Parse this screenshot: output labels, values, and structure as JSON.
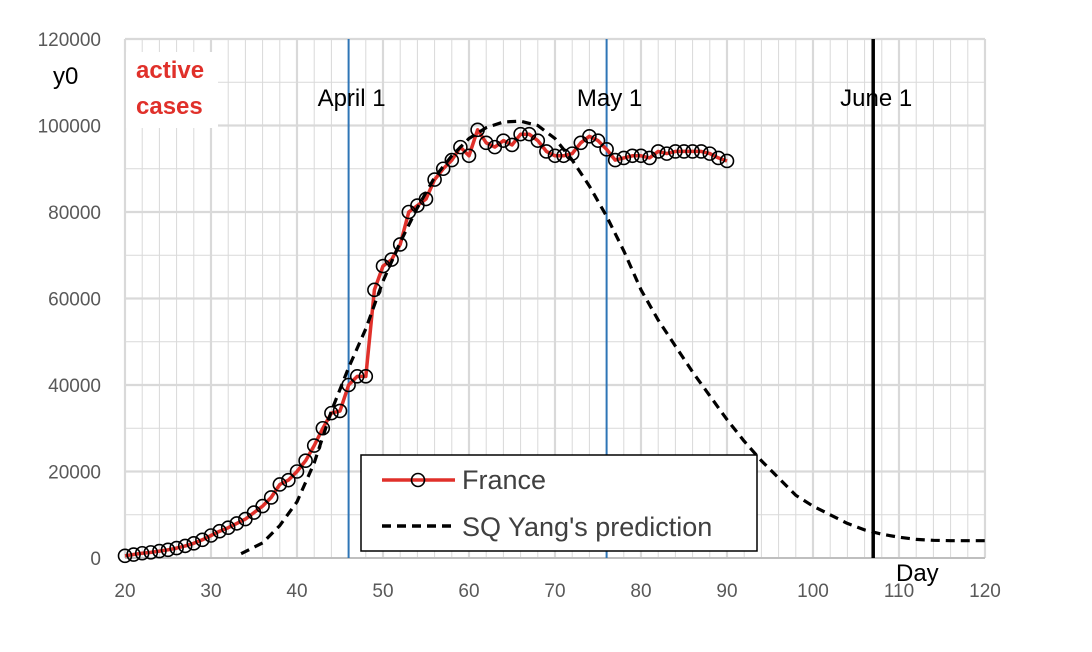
{
  "chart_data": {
    "type": "line",
    "title": "",
    "xlabel": "Day",
    "ylabel": "y0",
    "corner_label": [
      "active",
      "cases"
    ],
    "xlim": [
      20,
      120
    ],
    "ylim": [
      0,
      120000
    ],
    "x_ticks": [
      20,
      30,
      40,
      50,
      60,
      70,
      80,
      90,
      100,
      110,
      120
    ],
    "y_ticks": [
      0,
      20000,
      40000,
      60000,
      80000,
      100000,
      120000
    ],
    "grid": true,
    "legend_position": "bottom-center",
    "colors": {
      "france": "#e0302a",
      "prediction": "#000000",
      "month_line": "#2e75b6",
      "grid": "#d9d9d9",
      "red_label": "#e0302a"
    },
    "vlines": [
      {
        "x": 46,
        "label": "April 1",
        "color": "#2e75b6"
      },
      {
        "x": 76,
        "label": "May 1",
        "color": "#2e75b6"
      },
      {
        "x": 107,
        "label": "June 1",
        "color": "#000000"
      }
    ],
    "series": [
      {
        "name": "France",
        "style": "solid-line-circle-markers",
        "x": [
          20,
          21,
          22,
          23,
          24,
          25,
          26,
          27,
          28,
          29,
          30,
          31,
          32,
          33,
          34,
          35,
          36,
          37,
          38,
          39,
          40,
          41,
          42,
          43,
          44,
          45,
          46,
          47,
          48,
          49,
          50,
          51,
          52,
          53,
          54,
          55,
          56,
          57,
          58,
          59,
          60,
          61,
          62,
          63,
          64,
          65,
          66,
          67,
          68,
          69,
          70,
          71,
          72,
          73,
          74,
          75,
          76,
          77,
          78,
          79,
          80,
          81,
          82,
          83,
          84,
          85,
          86,
          87,
          88,
          89,
          90
        ],
        "y": [
          500,
          800,
          1100,
          1300,
          1600,
          1900,
          2300,
          2800,
          3400,
          4200,
          5200,
          6200,
          7000,
          8000,
          9000,
          10500,
          12000,
          14000,
          17000,
          18000,
          20000,
          22500,
          26000,
          30000,
          33500,
          34000,
          40000,
          42000,
          42000,
          62000,
          67500,
          69000,
          72500,
          80000,
          81500,
          83000,
          87500,
          90000,
          92000,
          95000,
          93000,
          99000,
          96000,
          95000,
          96500,
          95500,
          98000,
          98000,
          96500,
          94000,
          93000,
          93000,
          93500,
          96000,
          97500,
          96500,
          94500,
          92000,
          92500,
          93000,
          93000,
          92500,
          94000,
          93500,
          94000,
          94000,
          94000,
          94000,
          93500,
          92500,
          91800
        ]
      },
      {
        "name": "SQ Yang's prediction",
        "style": "dashed",
        "x": [
          33.5,
          36,
          38,
          40,
          42,
          44,
          46,
          48,
          50,
          52,
          54,
          56,
          58,
          60,
          62,
          64,
          66,
          68,
          70,
          72,
          74,
          76,
          78,
          80,
          82,
          84,
          86,
          88,
          90,
          92,
          94,
          96,
          98,
          100,
          102,
          104,
          106,
          108,
          110,
          112,
          114,
          116,
          118,
          120
        ],
        "y": [
          1000,
          3500,
          7500,
          13000,
          22000,
          34000,
          44000,
          53000,
          64000,
          73000,
          81000,
          88000,
          93000,
          97000,
          99500,
          100800,
          101000,
          100000,
          97000,
          92000,
          86000,
          79000,
          71000,
          62000,
          55000,
          49000,
          43000,
          37500,
          32000,
          27000,
          22500,
          18500,
          14500,
          12000,
          10000,
          8000,
          6500,
          5500,
          4800,
          4300,
          4100,
          4000,
          4000,
          4000
        ]
      }
    ]
  }
}
